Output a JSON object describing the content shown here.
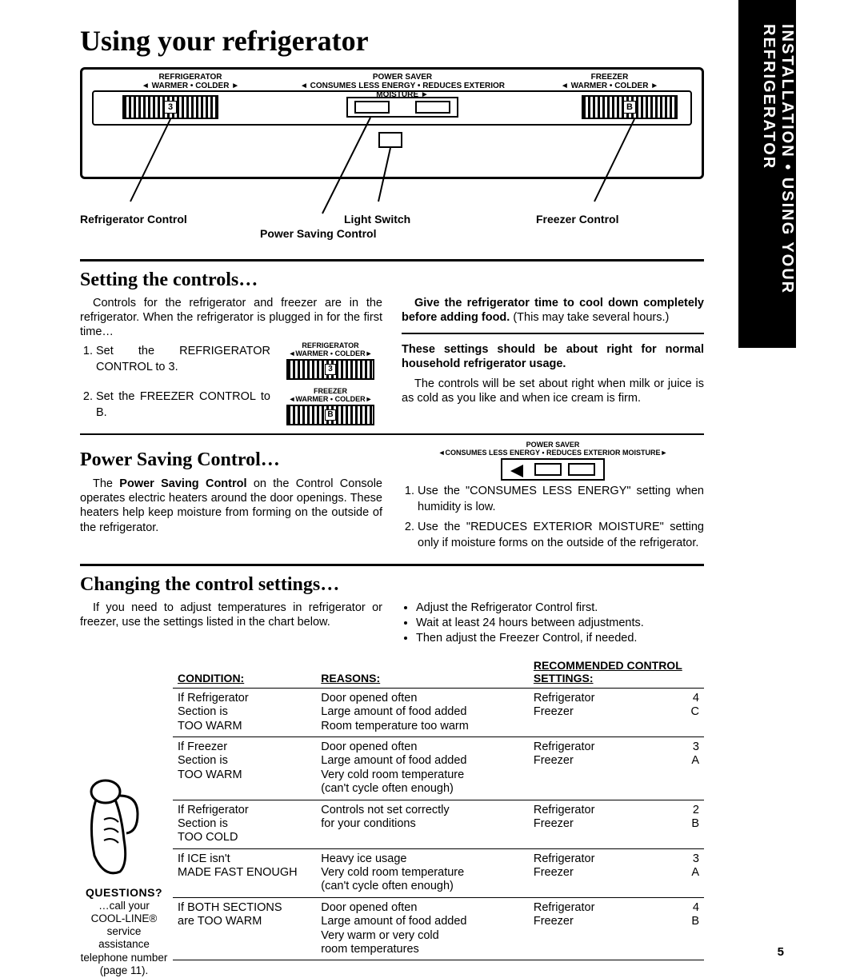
{
  "sideTab": "INSTALLATION • USING YOUR REFRIGERATOR",
  "title": "Using your refrigerator",
  "diagram": {
    "fridge_label": "REFRIGERATOR",
    "fridge_sub": "◄ WARMER  •  COLDER ►",
    "fridge_num": "3",
    "ps_label": "POWER  SAVER",
    "ps_sub": "◄ CONSUMES  LESS  ENERGY  •  REDUCES  EXTERIOR  MOISTURE ►",
    "freezer_label": "FREEZER",
    "freezer_sub": "◄ WARMER  •  COLDER ►",
    "freezer_num": "B",
    "cap_fridge": "Refrigerator Control",
    "cap_ps": "Power Saving Control",
    "cap_ls": "Light Switch",
    "cap_freezer": "Freezer Control"
  },
  "setting": {
    "heading": "Setting the controls…",
    "intro": "Controls for the refrigerator and freezer are in the refrigerator. When the refrigerator is plugged in for the first time…",
    "step1": "Set the REFRIGERA­TOR CONTROL to 3.",
    "step2": "Set the FREEZER CONTROL to B.",
    "mini_fridge_label": "REFRIGERATOR",
    "mini_fridge_sub": "◄WARMER • COLDER►",
    "mini_fridge_num": "3",
    "mini_freezer_label": "FREEZER",
    "mini_freezer_sub": "◄WARMER • COLDER►",
    "mini_freezer_num": "B",
    "right_bold1": "Give the refrigerator time to cool down com­pletely before adding food.",
    "right_text1": " (This may take sev­eral hours.)",
    "right_bold2": "These settings should be about right for normal household refrigerator usage.",
    "right_text2": "The controls will be set about right when milk or juice is as cold as you like and when ice cream is firm."
  },
  "power": {
    "heading": "Power Saving Control…",
    "paraA": "The ",
    "paraBold": "Power Saving Control",
    "paraB": " on the Control Con­sole operates electric heaters around the door openings. These heaters help keep moisture from forming on the outside of the refrigerator.",
    "ps_label": "POWER   SAVER",
    "ps_sub": "◄CONSUMES  LESS  ENERGY  •  REDUCES  EXTERIOR  MOISTURE►",
    "step1": "Use the \"CONSUMES LESS ENERGY\" setting when humidity is low.",
    "step2": "Use the \"REDUCES EXTERIOR MOISTURE\" setting only if moisture forms on the outside of the refrigerator."
  },
  "changing": {
    "heading": "Changing the control settings…",
    "left": "If you need to adjust temperatures in refrigerator or freezer, use the settings listed in the chart below.",
    "b1": "Adjust the Refrigerator Control first.",
    "b2": "Wait at least 24 hours between adjustments.",
    "b3": "Then adjust the Freezer Control, if needed."
  },
  "questions": {
    "title": "QUESTIONS?",
    "text": "…call your COOL-LINE® service assistance telephone number (page 11)."
  },
  "table": {
    "h1": "CONDITION:",
    "h2": "REASONS:",
    "h3": "RECOMMENDED CONTROL SETTINGS:",
    "rows": [
      {
        "cond": "If Refrigerator\nSection is\nTOO WARM",
        "reason": "Door opened often\nLarge amount of food added\nRoom temperature too warm",
        "r": "Refrigerator",
        "rv": "4",
        "f": "Freezer",
        "fv": "C"
      },
      {
        "cond": "If Freezer\nSection is\nTOO WARM",
        "reason": "Door opened often\nLarge amount of food added\nVery cold room temperature\n(can't cycle often enough)",
        "r": "Refrigerator",
        "rv": "3",
        "f": "Freezer",
        "fv": "A"
      },
      {
        "cond": "If Refrigerator\nSection is\nTOO COLD",
        "reason": "Controls not set correctly\nfor your conditions",
        "r": "Refrigerator",
        "rv": "2",
        "f": "Freezer",
        "fv": "B"
      },
      {
        "cond": "If ICE isn't\nMADE FAST ENOUGH",
        "reason": "Heavy ice usage\nVery cold room temperature\n(can't cycle often enough)",
        "r": "Refrigerator",
        "rv": "3",
        "f": "Freezer",
        "fv": "A"
      },
      {
        "cond": "If BOTH SECTIONS\nare TOO WARM",
        "reason": "Door opened often\nLarge amount of food added\nVery warm or very cold\nroom temperatures",
        "r": "Refrigerator",
        "rv": "4",
        "f": "Freezer",
        "fv": "B"
      }
    ]
  },
  "pageNumber": "5"
}
